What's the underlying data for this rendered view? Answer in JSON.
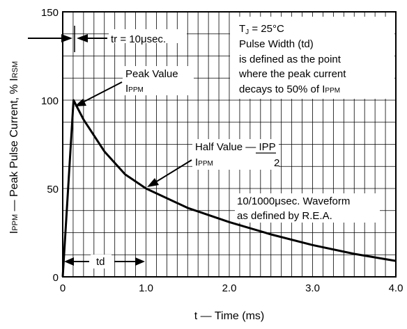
{
  "chart_data": {
    "type": "line",
    "title": "",
    "xlabel": "t —  Time (ms)",
    "ylabel_parts": [
      "I",
      "PPM",
      " — Peak Pulse Current, % I",
      "RSM"
    ],
    "xlim": [
      0,
      4.0
    ],
    "ylim": [
      0,
      150
    ],
    "x_ticks": [
      {
        "value": 0,
        "label": "0"
      },
      {
        "value": 1,
        "label": "1.0"
      },
      {
        "value": 2,
        "label": "2.0"
      },
      {
        "value": 3,
        "label": "3.0"
      },
      {
        "value": 4,
        "label": "4.0"
      }
    ],
    "y_ticks": [
      {
        "value": 0,
        "label": "0"
      },
      {
        "value": 50,
        "label": "50"
      },
      {
        "value": 100,
        "label": "100"
      },
      {
        "value": 150,
        "label": "150"
      }
    ],
    "grid": true,
    "grid_x_step": 0.125,
    "grid_y_step": 12.5,
    "series": [
      {
        "name": "",
        "color": "#000000",
        "x": [
          0,
          0.13,
          0.25,
          0.5,
          0.75,
          1.0,
          1.5,
          2.0,
          2.5,
          3.0,
          3.5,
          4.0
        ],
        "y": [
          0,
          100,
          89,
          71,
          58,
          50,
          39,
          31,
          24,
          18,
          13,
          9
        ]
      }
    ],
    "annotations": {
      "tr": {
        "text": "tr = 10μsec."
      },
      "peak": {
        "line1": "Peak Value",
        "line2_parts": [
          "I",
          "PPM"
        ]
      },
      "conditions": {
        "tj_parts": [
          "T",
          "J",
          " = 25°C"
        ],
        "lines": [
          "Pulse Width (td)",
          "is defined as the point",
          "where the peak current"
        ],
        "last_parts": [
          "decays to 50% of I",
          "PPM"
        ]
      },
      "half": {
        "prefix": "Half Value — ",
        "numerator": "IPP",
        "denominator": "2",
        "line2_parts": [
          "I",
          "PPM"
        ]
      },
      "waveform": {
        "line1": "10/1000μsec. Waveform",
        "line2": "as defined by R.E.A."
      },
      "td": {
        "text": "td"
      }
    }
  }
}
